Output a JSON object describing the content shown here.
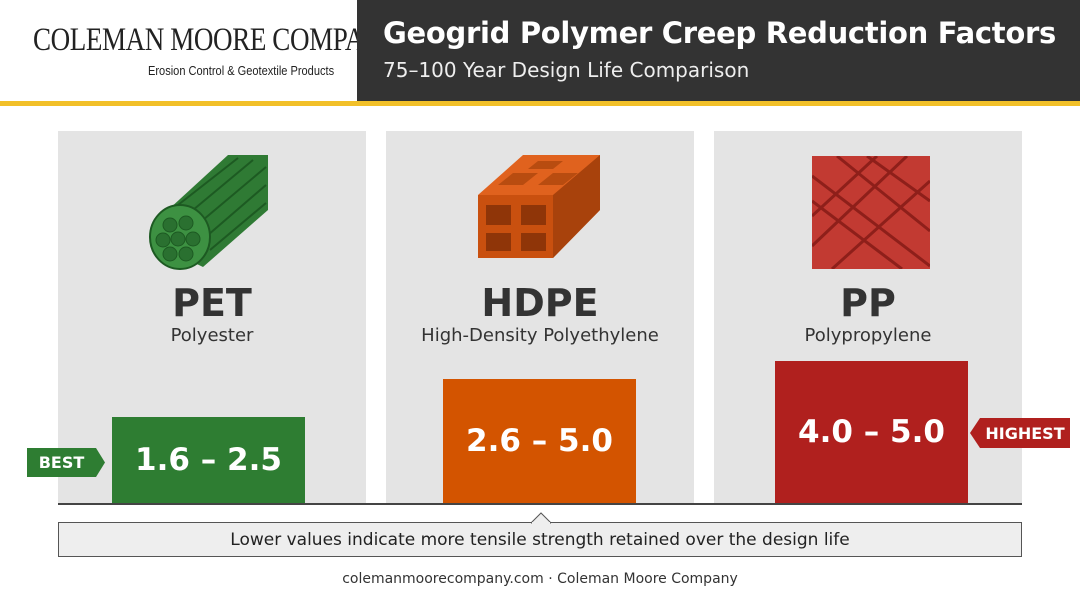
{
  "header": {
    "company": "COLEMAN MOORE COMPANY",
    "tagline": "Erosion Control & Geotextile Products",
    "title": "Geogrid Polymer Creep Reduction Factors",
    "subtitle": "75–100 Year Design Life Comparison"
  },
  "polymers": [
    {
      "code": "PET",
      "name": "Polyester",
      "range": "1.6 – 2.5"
    },
    {
      "code": "HDPE",
      "name": "High-Density Polyethylene",
      "range": "2.6 – 5.0"
    },
    {
      "code": "PP",
      "name": "Polypropylene",
      "range": "4.0 – 5.0"
    }
  ],
  "tags": {
    "best": "BEST",
    "highest": "HIGHEST"
  },
  "note": "Lower values indicate more tensile strength retained over the design life",
  "footer": "colemanmoorecompany.com · Coleman Moore Company"
}
